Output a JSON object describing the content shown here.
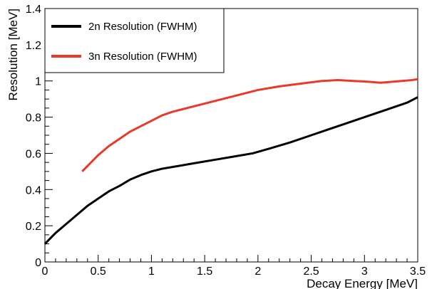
{
  "chart_data": {
    "type": "line",
    "title": "",
    "xlabel": "Decay Energy [MeV]",
    "ylabel": "Resolution [MeV]",
    "xlim": [
      0,
      3.5
    ],
    "ylim": [
      0,
      1.4
    ],
    "x_ticks": [
      "0",
      "0.5",
      "1",
      "1.5",
      "2",
      "2.5",
      "3",
      "3.5"
    ],
    "y_ticks": [
      "0",
      "0.2",
      "0.4",
      "0.6",
      "0.8",
      "1",
      "1.2",
      "1.4"
    ],
    "grid": false,
    "legend_position": "top-left",
    "series": [
      {
        "name": "2n Resolution (FWHM)",
        "color": "#000000",
        "x": [
          0,
          0.05,
          0.1,
          0.2,
          0.3,
          0.4,
          0.5,
          0.6,
          0.7,
          0.8,
          0.9,
          1.0,
          1.1,
          1.2,
          1.4,
          1.6,
          1.8,
          1.95,
          2.1,
          2.3,
          2.5,
          2.7,
          2.9,
          3.0,
          3.2,
          3.4,
          3.5
        ],
        "y": [
          0.1,
          0.13,
          0.16,
          0.21,
          0.26,
          0.31,
          0.35,
          0.39,
          0.42,
          0.455,
          0.48,
          0.5,
          0.515,
          0.525,
          0.545,
          0.565,
          0.585,
          0.6,
          0.625,
          0.66,
          0.7,
          0.74,
          0.78,
          0.8,
          0.84,
          0.88,
          0.91
        ]
      },
      {
        "name": "3n Resolution (FWHM)",
        "color": "#e8392b",
        "x": [
          0.35,
          0.4,
          0.5,
          0.6,
          0.7,
          0.8,
          0.9,
          1.0,
          1.1,
          1.2,
          1.4,
          1.6,
          1.8,
          2.0,
          2.2,
          2.4,
          2.6,
          2.75,
          2.9,
          3.05,
          3.15,
          3.25,
          3.35,
          3.45,
          3.5
        ],
        "y": [
          0.5,
          0.53,
          0.59,
          0.64,
          0.68,
          0.72,
          0.75,
          0.78,
          0.81,
          0.83,
          0.86,
          0.89,
          0.92,
          0.95,
          0.97,
          0.985,
          1.0,
          1.005,
          1.0,
          0.995,
          0.99,
          0.995,
          1.0,
          1.005,
          1.01
        ]
      }
    ]
  }
}
